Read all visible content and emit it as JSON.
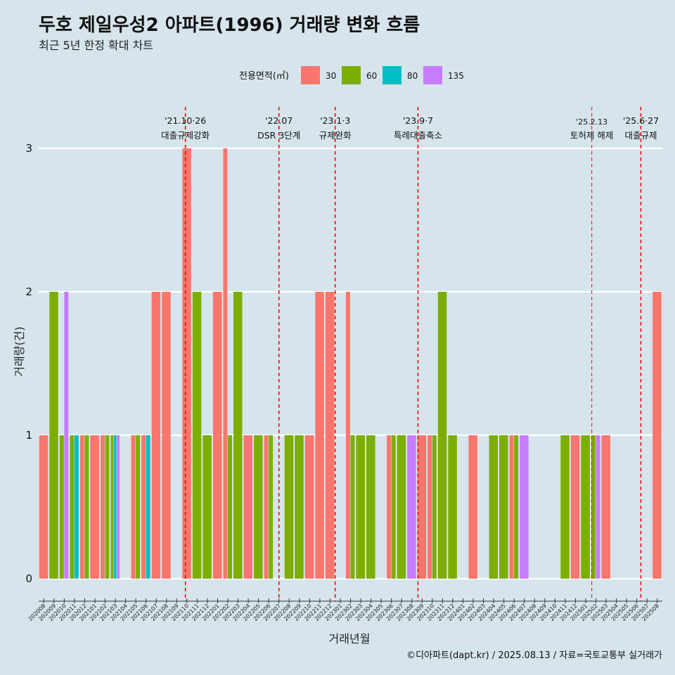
{
  "title": "두호 제일우성2 아파트(1996) 거래량 변화 흐름",
  "subtitle": "최근 5년 한정 확대 차트",
  "caption": "©디아파트(dapt.kr) / 2025.08.13 / 자료=국토교통부 실거래가",
  "chart_data": {
    "type": "bar",
    "stacking": "dodge",
    "xlabel": "거래년월",
    "ylabel": "거래량(건)",
    "ylim": [
      0,
      3
    ],
    "yticks": [
      0,
      1,
      2,
      3
    ],
    "grid": true,
    "legend": {
      "title": "전용면적(㎡)",
      "position": "top",
      "entries": [
        {
          "name": "30",
          "color": "#F8766D"
        },
        {
          "name": "60",
          "color": "#7CAE00"
        },
        {
          "name": "80",
          "color": "#00BFC4"
        },
        {
          "name": "135",
          "color": "#C77CFF"
        }
      ]
    },
    "categories": [
      "202008",
      "202009",
      "202010",
      "202011",
      "202012",
      "202101",
      "202102",
      "202103",
      "202104",
      "202105",
      "202106",
      "202107",
      "202108",
      "202109",
      "202110",
      "202111",
      "202112",
      "202201",
      "202202",
      "202203",
      "202204",
      "202205",
      "202206",
      "202207",
      "202208",
      "202209",
      "202210",
      "202211",
      "202212",
      "202301",
      "202302",
      "202303",
      "202304",
      "202305",
      "202306",
      "202307",
      "202308",
      "202309",
      "202310",
      "202311",
      "202312",
      "202401",
      "202402",
      "202403",
      "202404",
      "202405",
      "202406",
      "202407",
      "202408",
      "202409",
      "202410",
      "202411",
      "202412",
      "202501",
      "202502",
      "202503",
      "202504",
      "202505",
      "202506",
      "202507",
      "202508"
    ],
    "series": [
      {
        "name": "30",
        "values": [
          1,
          0,
          0,
          0,
          1,
          1,
          1,
          0,
          0,
          1,
          1,
          2,
          2,
          0,
          3,
          0,
          0,
          2,
          3,
          0,
          1,
          0,
          1,
          0,
          0,
          0,
          1,
          2,
          2,
          0,
          2,
          0,
          0,
          0,
          1,
          0,
          0,
          1,
          1,
          0,
          0,
          0,
          1,
          0,
          0,
          0,
          1,
          0,
          0,
          0,
          0,
          0,
          1,
          0,
          0,
          1,
          0,
          0,
          0,
          0,
          2
        ]
      },
      {
        "name": "60",
        "values": [
          0,
          2,
          1,
          1,
          1,
          0,
          1,
          1,
          0,
          1,
          0,
          0,
          0,
          0,
          0,
          2,
          1,
          0,
          1,
          2,
          0,
          1,
          1,
          0,
          1,
          1,
          0,
          0,
          0,
          0,
          1,
          1,
          1,
          0,
          1,
          1,
          0,
          0,
          1,
          2,
          1,
          0,
          0,
          0,
          1,
          1,
          1,
          0,
          0,
          0,
          0,
          1,
          0,
          1,
          1,
          0,
          0,
          0,
          0,
          0,
          0
        ]
      },
      {
        "name": "80",
        "values": [
          0,
          0,
          0,
          1,
          0,
          0,
          0,
          1,
          0,
          0,
          1,
          0,
          0,
          0,
          0,
          0,
          0,
          0,
          0,
          0,
          0,
          0,
          0,
          0,
          0,
          0,
          0,
          0,
          0,
          0,
          0,
          0,
          0,
          0,
          0,
          0,
          0,
          0,
          0,
          0,
          0,
          0,
          0,
          0,
          0,
          0,
          0,
          0,
          0,
          0,
          0,
          0,
          0,
          0,
          0,
          0,
          0,
          0,
          0,
          0,
          0
        ]
      },
      {
        "name": "135",
        "values": [
          0,
          0,
          2,
          0,
          0,
          0,
          0,
          1,
          0,
          0,
          0,
          0,
          0,
          0,
          0,
          0,
          0,
          0,
          0,
          0,
          0,
          0,
          0,
          0,
          0,
          0,
          0,
          0,
          0,
          0,
          0,
          0,
          0,
          0,
          0,
          0,
          1,
          0,
          0,
          0,
          0,
          0,
          0,
          0,
          0,
          0,
          0,
          1,
          0,
          0,
          0,
          0,
          0,
          0,
          1,
          0,
          0,
          0,
          0,
          0,
          0
        ]
      }
    ],
    "annotations": [
      {
        "date": "'21.10·26",
        "label": "대출규제강화",
        "x": "202110",
        "offset": 0.35
      },
      {
        "date": "'22.07",
        "label": "DSR 3단계",
        "x": "202207",
        "offset": 0.5
      },
      {
        "date": "'23.1·3",
        "label": "규제완화",
        "x": "202301",
        "offset": 0
      },
      {
        "date": "'23.9·7",
        "label": "특례대출축소",
        "x": "202309",
        "offset": 0.1
      },
      {
        "date": "'25.2.13",
        "label": "토허제 해제",
        "x": "202502",
        "offset": 0.1,
        "small": true
      },
      {
        "date": "'25.6·27",
        "label": "대출규제",
        "x": "202506",
        "offset": 0.9
      }
    ]
  }
}
